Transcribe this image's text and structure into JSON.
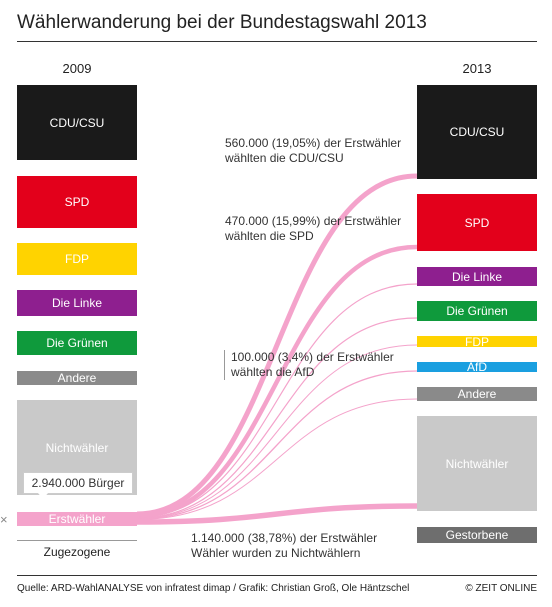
{
  "title": "Wählerwanderung bei der Bundestagswahl 2013",
  "left_year": "2009",
  "right_year": "2013",
  "left_blocks": [
    {
      "label": "CDU/CSU",
      "color": "#1a1a1a"
    },
    {
      "label": "SPD",
      "color": "#e3001b"
    },
    {
      "label": "FDP",
      "color": "#ffd300"
    },
    {
      "label": "Die Linke",
      "color": "#8e1f8f"
    },
    {
      "label": "Die Grünen",
      "color": "#0f9a3c"
    },
    {
      "label": "Andere",
      "color": "#8a8a8a"
    },
    {
      "label": "Nichtwähler",
      "color": "#c9c9c9"
    },
    {
      "label": "Erstwähler",
      "color": "#f4a3cb"
    }
  ],
  "right_blocks": [
    {
      "label": "CDU/CSU",
      "color": "#1a1a1a"
    },
    {
      "label": "SPD",
      "color": "#e3001b"
    },
    {
      "label": "Die Linke",
      "color": "#8e1f8f"
    },
    {
      "label": "Die Grünen",
      "color": "#0f9a3c"
    },
    {
      "label": "FDP",
      "color": "#ffd300"
    },
    {
      "label": "AfD",
      "color": "#1a9fe0"
    },
    {
      "label": "Andere",
      "color": "#8a8a8a"
    },
    {
      "label": "Nichtwähler",
      "color": "#c9c9c9"
    },
    {
      "label": "Gestorbene",
      "color": "#6e6e6e"
    }
  ],
  "flow_color": "#f4a3cb",
  "annotations": {
    "cdu_line1": "560.000 (19,05%) der Erstwähler",
    "cdu_line2": "wählten die CDU/CSU",
    "spd_line1": "470.000 (15,99%) der Erstwähler",
    "spd_line2": "wählten die SPD",
    "afd_line1": "100.000 (3,4%) der Erstwähler",
    "afd_line2": "wählten die AfD",
    "nw_line1": "1.140.000 (38,78%) der Erstwähler",
    "nw_line2": "Wähler wurden zu Nichtwählern"
  },
  "callout": "2.940.000 Bürger",
  "close_mark": "×",
  "zugezogene": "Zugezogene",
  "source": "Quelle: ARD-WahlANALYSE von infratest dimap / Grafik: Christian Groß, Ole Häntzschel",
  "copyright": "© ZEIT ONLINE"
}
